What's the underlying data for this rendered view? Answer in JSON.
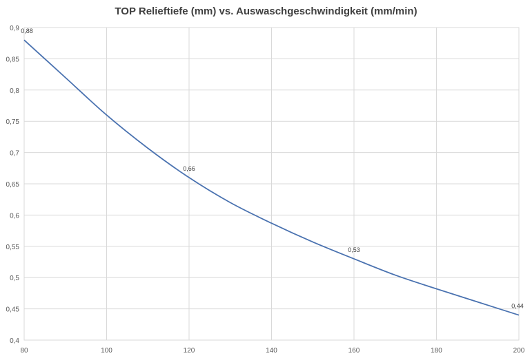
{
  "chart_data": {
    "type": "line",
    "title": "TOP Relieftiefe (mm) vs. Auswaschgeschwindigkeit (mm/min)",
    "xlabel": "",
    "ylabel": "",
    "xlim": [
      80,
      200
    ],
    "ylim": [
      0.4,
      0.9
    ],
    "x_ticks": [
      "80",
      "100",
      "120",
      "140",
      "160",
      "180",
      "200"
    ],
    "y_ticks": [
      "0,4",
      "0,45",
      "0,5",
      "0,55",
      "0,6",
      "0,65",
      "0,7",
      "0,75",
      "0,8",
      "0,85",
      "0,9"
    ],
    "grid": true,
    "legend": "none",
    "series": [
      {
        "color": "#4a72b0",
        "x": [
          80,
          90,
          100,
          110,
          120,
          130,
          140,
          150,
          160,
          170,
          180,
          190,
          200
        ],
        "y": [
          0.88,
          0.82,
          0.76,
          0.707,
          0.66,
          0.62,
          0.587,
          0.557,
          0.53,
          0.504,
          0.482,
          0.461,
          0.44
        ]
      }
    ],
    "data_labels": [
      {
        "x": 80,
        "y": 0.88,
        "text": "0,88"
      },
      {
        "x": 120,
        "y": 0.66,
        "text": "0,66"
      },
      {
        "x": 160,
        "y": 0.53,
        "text": "0,53"
      },
      {
        "x": 200,
        "y": 0.44,
        "text": "0,44"
      }
    ]
  }
}
